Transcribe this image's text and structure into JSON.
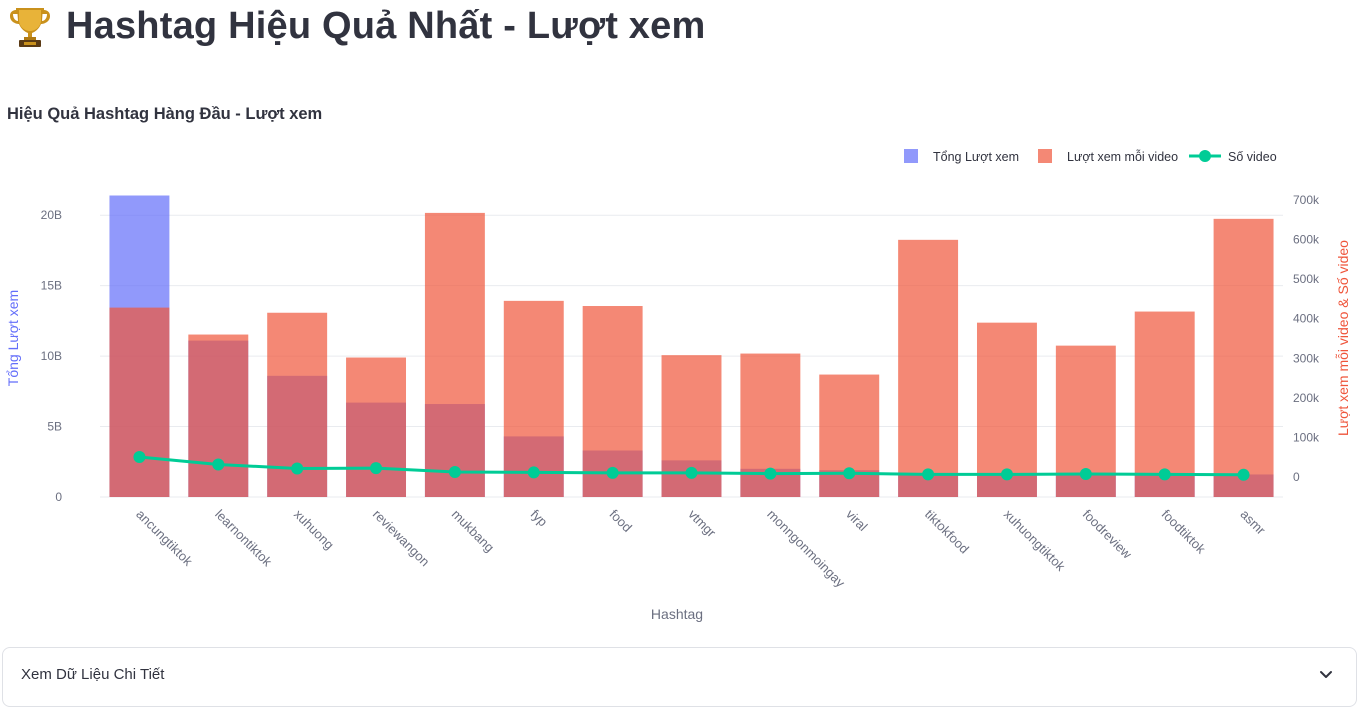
{
  "page": {
    "title": "Hashtag Hiệu Quả Nhất - Lượt xem",
    "title_icon": "trophy-icon"
  },
  "chart": {
    "title": "Hiệu Quả Hashtag Hàng Đầu - Lượt xem"
  },
  "expander": {
    "label": "Xem Dữ Liệu Chi Tiết",
    "icon": "chevron-down-icon"
  },
  "colors": {
    "total_views": "#636efa",
    "views_per_video": "#ef553b",
    "video_count": "#00cc96"
  },
  "chart_data": {
    "type": "bar",
    "title": "Hiệu Quả Hashtag Hàng Đầu - Lượt xem",
    "xlabel": "Hashtag",
    "ylabel": "Tổng Lượt xem",
    "y2label": "Lượt xem mỗi video & Số video",
    "categories": [
      "ancungtiktok",
      "learnontiktok",
      "xuhuong",
      "reviewangon",
      "mukbang",
      "fyp",
      "food",
      "vtmgr",
      "monngonmoingay",
      "viral",
      "tiktokfood",
      "xuhuongtiktok",
      "foodreview",
      "foodtiktok",
      "asmr"
    ],
    "y_ticks": [
      "0",
      "5B",
      "10B",
      "15B",
      "20B"
    ],
    "y2_ticks": [
      "0",
      "100k",
      "200k",
      "300k",
      "400k",
      "500k",
      "600k",
      "700k"
    ],
    "ylim": [
      0,
      22500000000
    ],
    "y2lim": [
      -50000,
      750000
    ],
    "legend": "top-right",
    "series": [
      {
        "name": "Tổng Lượt xem",
        "axis": "y",
        "type": "bar",
        "values": [
          21400000000,
          11100000000,
          8600000000,
          6700000000,
          6600000000,
          4300000000,
          3300000000,
          2600000000,
          2000000000,
          1900000000,
          1700000000,
          1700000000,
          1650000000,
          1650000000,
          1600000000
        ]
      },
      {
        "name": "Lượt xem mỗi video",
        "axis": "y2",
        "type": "bar",
        "values": [
          428000,
          360000,
          415000,
          302000,
          667000,
          445000,
          432000,
          308000,
          312000,
          259000,
          599000,
          390000,
          332000,
          418000,
          652000
        ]
      },
      {
        "name": "Số video",
        "axis": "y2",
        "type": "line",
        "values": [
          51000,
          32000,
          22000,
          23000,
          13000,
          12000,
          11000,
          11000,
          9000,
          10000,
          7000,
          7000,
          8000,
          7000,
          6000
        ]
      }
    ]
  }
}
